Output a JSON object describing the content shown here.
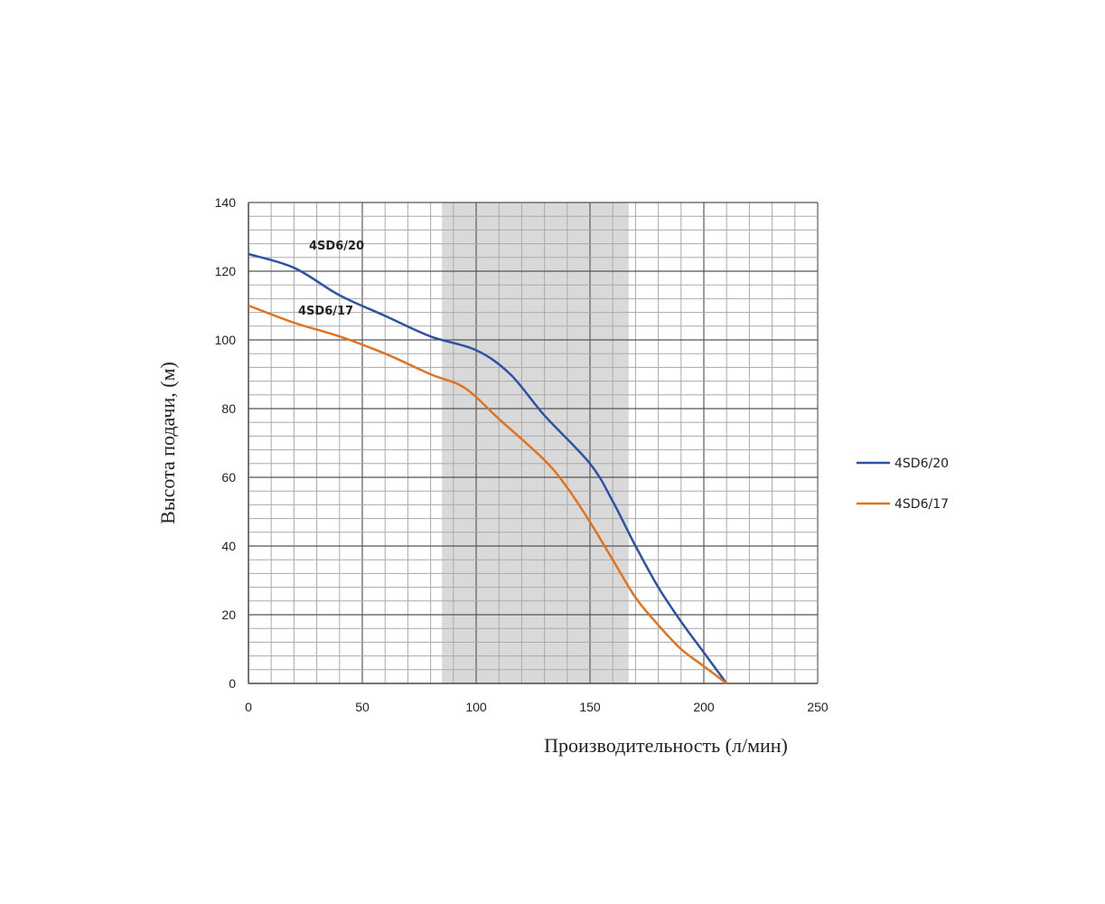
{
  "chart_data": {
    "type": "line",
    "xlabel": "Производительность (л/мин)",
    "ylabel": "Высота подачи, (м)",
    "xlim": [
      0,
      250
    ],
    "ylim": [
      0,
      140
    ],
    "xticks": [
      0,
      50,
      100,
      150,
      200,
      250
    ],
    "yticks": [
      0,
      20,
      40,
      60,
      80,
      100,
      120,
      140
    ],
    "grid": true,
    "highlight_band": {
      "x": [
        85,
        167
      ],
      "color": "#d9d9d9"
    },
    "legend_position": "right",
    "series": [
      {
        "name": "4SD6/20",
        "label": "4SD6/20",
        "color": "#2e52a6",
        "x": [
          0,
          20,
          40,
          60,
          80,
          100,
          115,
          130,
          150,
          160,
          170,
          180,
          190,
          200,
          210
        ],
        "y": [
          125,
          121,
          113,
          107,
          101,
          97,
          90,
          78,
          64,
          53,
          40,
          28,
          18,
          9,
          0
        ]
      },
      {
        "name": "4SD6/17",
        "label": "4SD6/17",
        "color": "#e0731f",
        "x": [
          0,
          20,
          40,
          60,
          80,
          95,
          110,
          130,
          140,
          150,
          160,
          170,
          180,
          190,
          200,
          210
        ],
        "y": [
          110,
          105,
          101,
          96,
          90,
          86,
          77,
          65,
          57,
          47,
          36,
          25,
          17,
          10,
          5,
          0
        ]
      }
    ]
  }
}
